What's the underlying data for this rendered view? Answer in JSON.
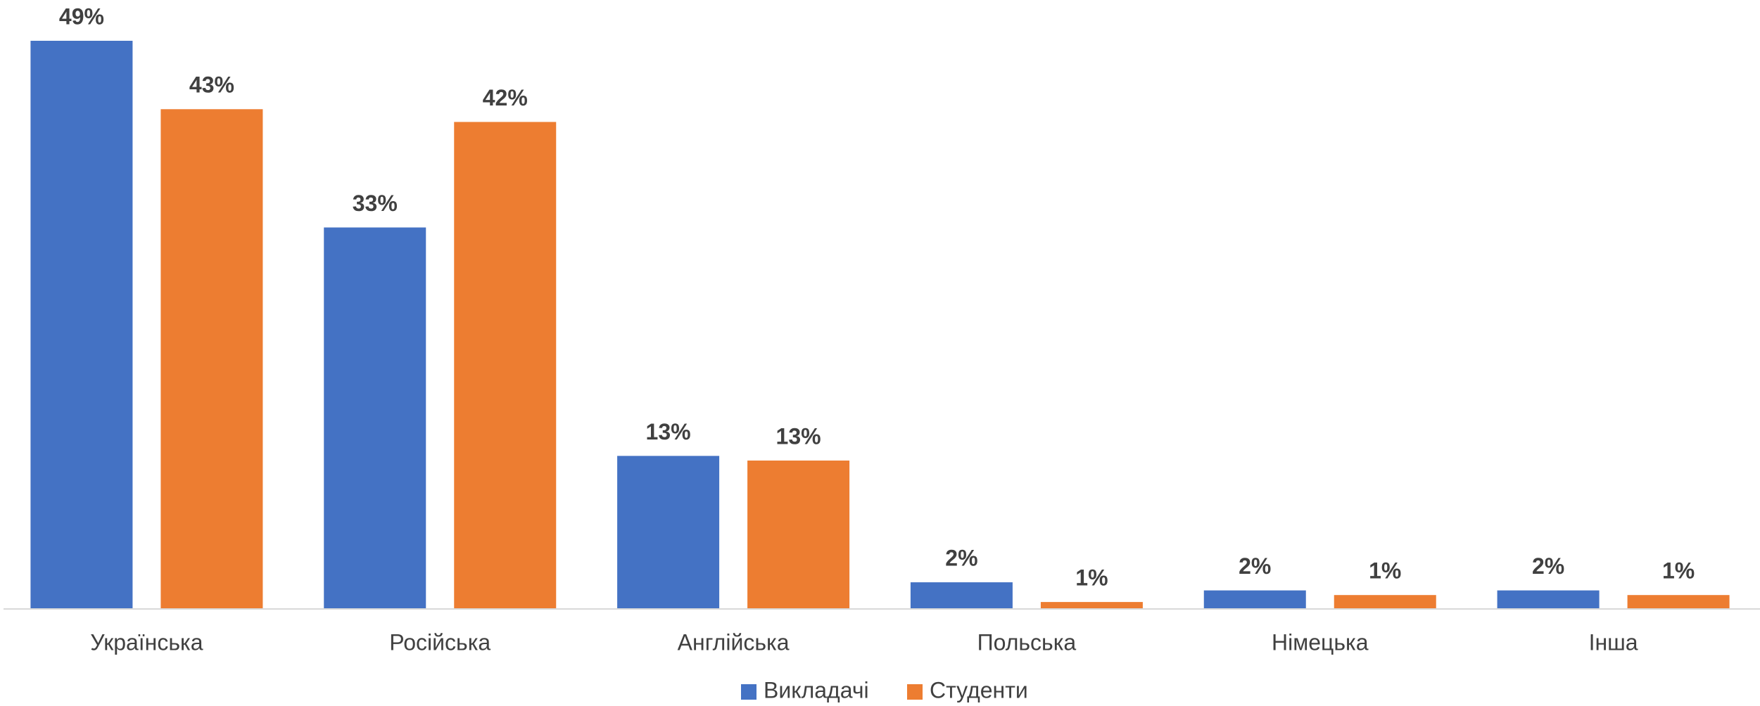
{
  "chart_data": {
    "type": "bar",
    "categories": [
      "Українська",
      "Російська",
      "Англійська",
      "Польська",
      "Німецька",
      "Інша"
    ],
    "series": [
      {
        "name": "Викладачі",
        "color": "#4472c4",
        "values": [
          49,
          32.9,
          13.2,
          2.3,
          1.6,
          1.6
        ],
        "value_labels": [
          "49%",
          "33%",
          "13%",
          "2%",
          "2%",
          "2%"
        ]
      },
      {
        "name": "Студенти",
        "color": "#ed7d31",
        "values": [
          43.1,
          42,
          12.8,
          0.6,
          1.2,
          1.2
        ],
        "value_labels": [
          "43%",
          "42%",
          "13%",
          "1%",
          "1%",
          "1%"
        ]
      }
    ],
    "ylim": [
      0,
      50
    ],
    "legend": "bottom"
  }
}
